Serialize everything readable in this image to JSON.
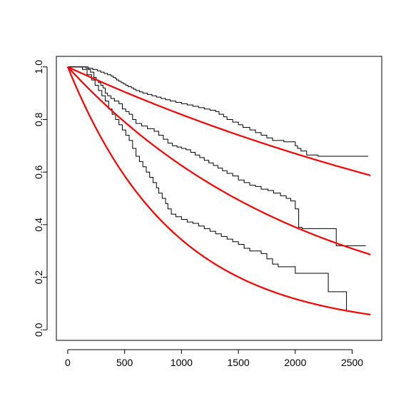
{
  "chart_data": {
    "type": "line",
    "title": "",
    "xlabel": "",
    "ylabel": "",
    "xlim": [
      -100,
      2760
    ],
    "ylim": [
      -0.04,
      1.04
    ],
    "x_ticks": [
      0,
      500,
      1000,
      1500,
      2000,
      2500
    ],
    "x_tick_labels": [
      "0",
      "500",
      "1000",
      "1500",
      "2000",
      "2500"
    ],
    "y_ticks": [
      0.0,
      0.2,
      0.4,
      0.6,
      0.8,
      1.0
    ],
    "y_tick_labels": [
      "0.0",
      "0.2",
      "0.4",
      "0.6",
      "0.8",
      "1.0"
    ],
    "grid": false,
    "legend": "none",
    "colors": {
      "empirical": "#000000",
      "fitted": "#ff0000"
    },
    "step_series": [
      {
        "values": [
          [
            0,
            1.0
          ],
          [
            100,
            1.0
          ],
          [
            160,
            0.995
          ],
          [
            220,
            0.99
          ],
          [
            260,
            0.985
          ],
          [
            290,
            0.98
          ],
          [
            320,
            0.975
          ],
          [
            350,
            0.97
          ],
          [
            380,
            0.965
          ],
          [
            400,
            0.96
          ],
          [
            420,
            0.955
          ],
          [
            430,
            0.95
          ],
          [
            450,
            0.945
          ],
          [
            470,
            0.94
          ],
          [
            490,
            0.935
          ],
          [
            510,
            0.93
          ],
          [
            530,
            0.925
          ],
          [
            560,
            0.92
          ],
          [
            580,
            0.915
          ],
          [
            600,
            0.91
          ],
          [
            630,
            0.905
          ],
          [
            660,
            0.9
          ],
          [
            700,
            0.895
          ],
          [
            740,
            0.89
          ],
          [
            780,
            0.885
          ],
          [
            820,
            0.88
          ],
          [
            860,
            0.875
          ],
          [
            900,
            0.87
          ],
          [
            950,
            0.865
          ],
          [
            1000,
            0.86
          ],
          [
            1050,
            0.855
          ],
          [
            1100,
            0.85
          ],
          [
            1150,
            0.845
          ],
          [
            1200,
            0.84
          ],
          [
            1250,
            0.835
          ],
          [
            1300,
            0.83
          ],
          [
            1330,
            0.82
          ],
          [
            1370,
            0.81
          ],
          [
            1400,
            0.8
          ],
          [
            1450,
            0.79
          ],
          [
            1500,
            0.78
          ],
          [
            1540,
            0.77
          ],
          [
            1600,
            0.76
          ],
          [
            1650,
            0.75
          ],
          [
            1700,
            0.74
          ],
          [
            1750,
            0.73
          ],
          [
            1800,
            0.72
          ],
          [
            1900,
            0.715
          ],
          [
            2000,
            0.7
          ],
          [
            2020,
            0.69
          ],
          [
            2050,
            0.68
          ],
          [
            2100,
            0.665
          ],
          [
            2200,
            0.66
          ],
          [
            2640,
            0.66
          ]
        ]
      },
      {
        "values": [
          [
            0,
            1.0
          ],
          [
            150,
            1.0
          ],
          [
            180,
            0.99
          ],
          [
            200,
            0.98
          ],
          [
            230,
            0.96
          ],
          [
            250,
            0.95
          ],
          [
            270,
            0.94
          ],
          [
            290,
            0.93
          ],
          [
            310,
            0.92
          ],
          [
            330,
            0.9
          ],
          [
            350,
            0.89
          ],
          [
            380,
            0.88
          ],
          [
            410,
            0.87
          ],
          [
            450,
            0.86
          ],
          [
            480,
            0.84
          ],
          [
            510,
            0.83
          ],
          [
            540,
            0.82
          ],
          [
            570,
            0.8
          ],
          [
            600,
            0.785
          ],
          [
            650,
            0.775
          ],
          [
            700,
            0.765
          ],
          [
            760,
            0.755
          ],
          [
            800,
            0.74
          ],
          [
            840,
            0.725
          ],
          [
            880,
            0.71
          ],
          [
            920,
            0.7
          ],
          [
            960,
            0.695
          ],
          [
            1000,
            0.69
          ],
          [
            1040,
            0.685
          ],
          [
            1080,
            0.675
          ],
          [
            1120,
            0.665
          ],
          [
            1160,
            0.655
          ],
          [
            1200,
            0.645
          ],
          [
            1240,
            0.635
          ],
          [
            1280,
            0.625
          ],
          [
            1320,
            0.615
          ],
          [
            1360,
            0.605
          ],
          [
            1400,
            0.595
          ],
          [
            1450,
            0.585
          ],
          [
            1500,
            0.57
          ],
          [
            1550,
            0.56
          ],
          [
            1600,
            0.55
          ],
          [
            1650,
            0.545
          ],
          [
            1700,
            0.535
          ],
          [
            1760,
            0.53
          ],
          [
            1810,
            0.52
          ],
          [
            1870,
            0.51
          ],
          [
            1920,
            0.5
          ],
          [
            1960,
            0.49
          ],
          [
            2000,
            0.46
          ],
          [
            2030,
            0.39
          ],
          [
            2060,
            0.385
          ],
          [
            2360,
            0.32
          ],
          [
            2620,
            0.32
          ]
        ]
      },
      {
        "values": [
          [
            0,
            1.0
          ],
          [
            100,
            1.0
          ],
          [
            130,
            0.99
          ],
          [
            170,
            0.97
          ],
          [
            210,
            0.95
          ],
          [
            240,
            0.93
          ],
          [
            270,
            0.91
          ],
          [
            300,
            0.89
          ],
          [
            330,
            0.87
          ],
          [
            360,
            0.84
          ],
          [
            390,
            0.82
          ],
          [
            420,
            0.8
          ],
          [
            450,
            0.78
          ],
          [
            480,
            0.76
          ],
          [
            510,
            0.74
          ],
          [
            540,
            0.72
          ],
          [
            570,
            0.69
          ],
          [
            600,
            0.66
          ],
          [
            630,
            0.64
          ],
          [
            660,
            0.62
          ],
          [
            690,
            0.6
          ],
          [
            720,
            0.58
          ],
          [
            750,
            0.56
          ],
          [
            780,
            0.54
          ],
          [
            800,
            0.52
          ],
          [
            830,
            0.5
          ],
          [
            860,
            0.48
          ],
          [
            880,
            0.46
          ],
          [
            910,
            0.44
          ],
          [
            950,
            0.43
          ],
          [
            1000,
            0.42
          ],
          [
            1050,
            0.41
          ],
          [
            1100,
            0.405
          ],
          [
            1150,
            0.395
          ],
          [
            1200,
            0.385
          ],
          [
            1250,
            0.375
          ],
          [
            1300,
            0.365
          ],
          [
            1350,
            0.355
          ],
          [
            1400,
            0.345
          ],
          [
            1450,
            0.335
          ],
          [
            1500,
            0.325
          ],
          [
            1550,
            0.31
          ],
          [
            1600,
            0.3
          ],
          [
            1700,
            0.29
          ],
          [
            1750,
            0.27
          ],
          [
            1800,
            0.25
          ],
          [
            1850,
            0.24
          ],
          [
            2000,
            0.215
          ],
          [
            2290,
            0.145
          ],
          [
            2450,
            0.07
          ]
        ]
      }
    ],
    "fitted_series": [
      {
        "rate": 0.0002,
        "x_max": 2660
      },
      {
        "rate": 0.00047,
        "x_max": 2660
      },
      {
        "rate": 0.00107,
        "x_max": 2660
      }
    ]
  }
}
